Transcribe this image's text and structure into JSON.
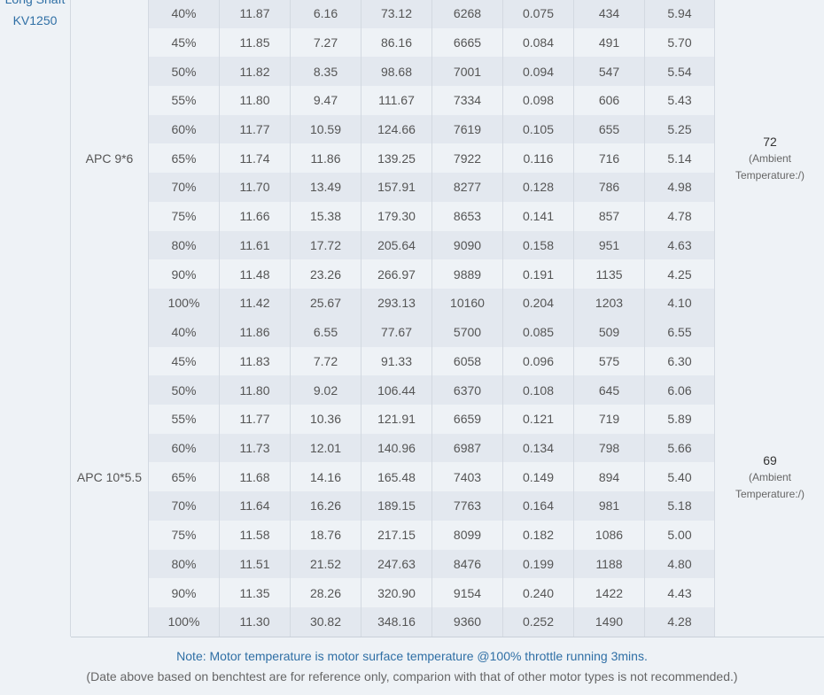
{
  "motor": {
    "line1": "Long Shaft",
    "line2": "KV1250"
  },
  "sections": [
    {
      "prop": "APC 9*6",
      "temp_value": "72",
      "temp_note_1": "(Ambient",
      "temp_note_2": "Temperature:/)",
      "rows": [
        [
          "40%",
          "11.87",
          "6.16",
          "73.12",
          "6268",
          "0.075",
          "434",
          "5.94"
        ],
        [
          "45%",
          "11.85",
          "7.27",
          "86.16",
          "6665",
          "0.084",
          "491",
          "5.70"
        ],
        [
          "50%",
          "11.82",
          "8.35",
          "98.68",
          "7001",
          "0.094",
          "547",
          "5.54"
        ],
        [
          "55%",
          "11.80",
          "9.47",
          "111.67",
          "7334",
          "0.098",
          "606",
          "5.43"
        ],
        [
          "60%",
          "11.77",
          "10.59",
          "124.66",
          "7619",
          "0.105",
          "655",
          "5.25"
        ],
        [
          "65%",
          "11.74",
          "11.86",
          "139.25",
          "7922",
          "0.116",
          "716",
          "5.14"
        ],
        [
          "70%",
          "11.70",
          "13.49",
          "157.91",
          "8277",
          "0.128",
          "786",
          "4.98"
        ],
        [
          "75%",
          "11.66",
          "15.38",
          "179.30",
          "8653",
          "0.141",
          "857",
          "4.78"
        ],
        [
          "80%",
          "11.61",
          "17.72",
          "205.64",
          "9090",
          "0.158",
          "951",
          "4.63"
        ],
        [
          "90%",
          "11.48",
          "23.26",
          "266.97",
          "9889",
          "0.191",
          "1135",
          "4.25"
        ],
        [
          "100%",
          "11.42",
          "25.67",
          "293.13",
          "10160",
          "0.204",
          "1203",
          "4.10"
        ]
      ]
    },
    {
      "prop": "APC 10*5.5",
      "temp_value": "69",
      "temp_note_1": "(Ambient",
      "temp_note_2": "Temperature:/)",
      "rows": [
        [
          "40%",
          "11.86",
          "6.55",
          "77.67",
          "5700",
          "0.085",
          "509",
          "6.55"
        ],
        [
          "45%",
          "11.83",
          "7.72",
          "91.33",
          "6058",
          "0.096",
          "575",
          "6.30"
        ],
        [
          "50%",
          "11.80",
          "9.02",
          "106.44",
          "6370",
          "0.108",
          "645",
          "6.06"
        ],
        [
          "55%",
          "11.77",
          "10.36",
          "121.91",
          "6659",
          "0.121",
          "719",
          "5.89"
        ],
        [
          "60%",
          "11.73",
          "12.01",
          "140.96",
          "6987",
          "0.134",
          "798",
          "5.66"
        ],
        [
          "65%",
          "11.68",
          "14.16",
          "165.48",
          "7403",
          "0.149",
          "894",
          "5.40"
        ],
        [
          "70%",
          "11.64",
          "16.26",
          "189.15",
          "7763",
          "0.164",
          "981",
          "5.18"
        ],
        [
          "75%",
          "11.58",
          "18.76",
          "217.15",
          "8099",
          "0.182",
          "1086",
          "5.00"
        ],
        [
          "80%",
          "11.51",
          "21.52",
          "247.63",
          "8476",
          "0.199",
          "1188",
          "4.80"
        ],
        [
          "90%",
          "11.35",
          "28.26",
          "320.90",
          "9154",
          "0.240",
          "1422",
          "4.43"
        ],
        [
          "100%",
          "11.30",
          "30.82",
          "348.16",
          "9360",
          "0.252",
          "1490",
          "4.28"
        ]
      ]
    }
  ],
  "footer": {
    "note": "Note: Motor temperature is motor surface temperature @100% throttle running 3mins.",
    "disclaimer": "(Date above based on benchtest are for reference only, comparion with that of other motor types is not recommended.)"
  }
}
